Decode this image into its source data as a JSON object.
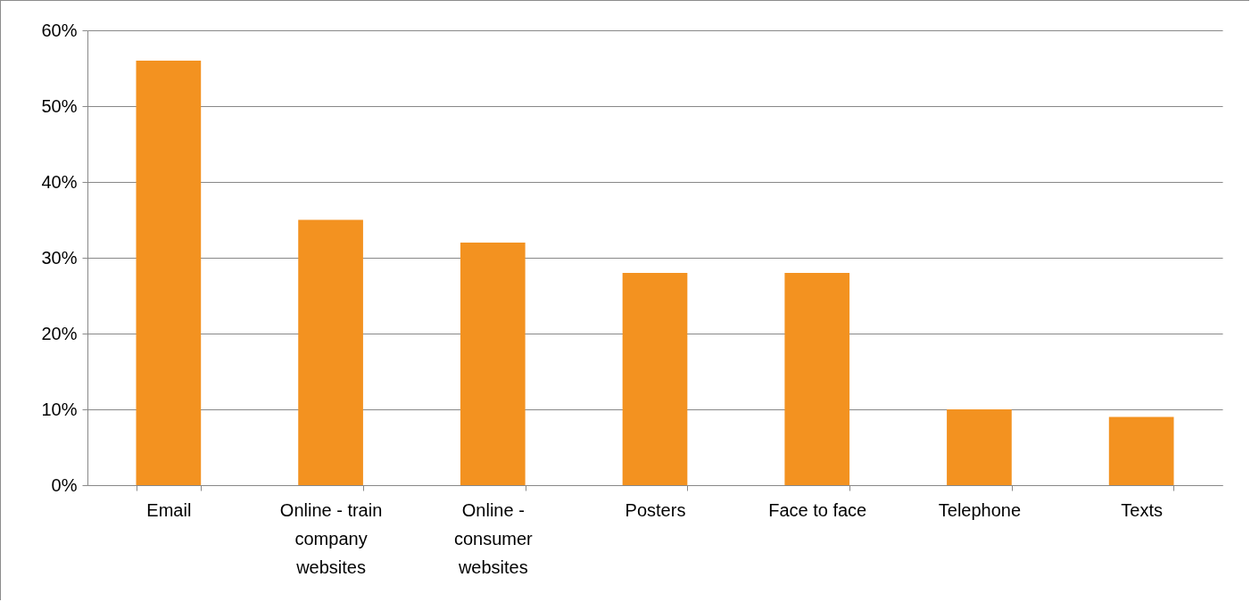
{
  "chart_data": {
    "type": "bar",
    "categories": [
      "Email",
      "Online - train company websites",
      "Online - consumer websites",
      "Posters",
      "Face to face",
      "Telephone",
      "Texts"
    ],
    "values": [
      56,
      35,
      32,
      28,
      28,
      10,
      9
    ],
    "color": "#f39220",
    "ylim": [
      0,
      60
    ],
    "yticks": [
      {
        "value": 0,
        "label": "0%"
      },
      {
        "value": 10,
        "label": "10%"
      },
      {
        "value": 20,
        "label": "20%"
      },
      {
        "value": 30,
        "label": "30%"
      },
      {
        "value": 40,
        "label": "40%"
      },
      {
        "value": 50,
        "label": "50%"
      },
      {
        "value": 60,
        "label": "60%"
      }
    ],
    "grid": "y"
  }
}
